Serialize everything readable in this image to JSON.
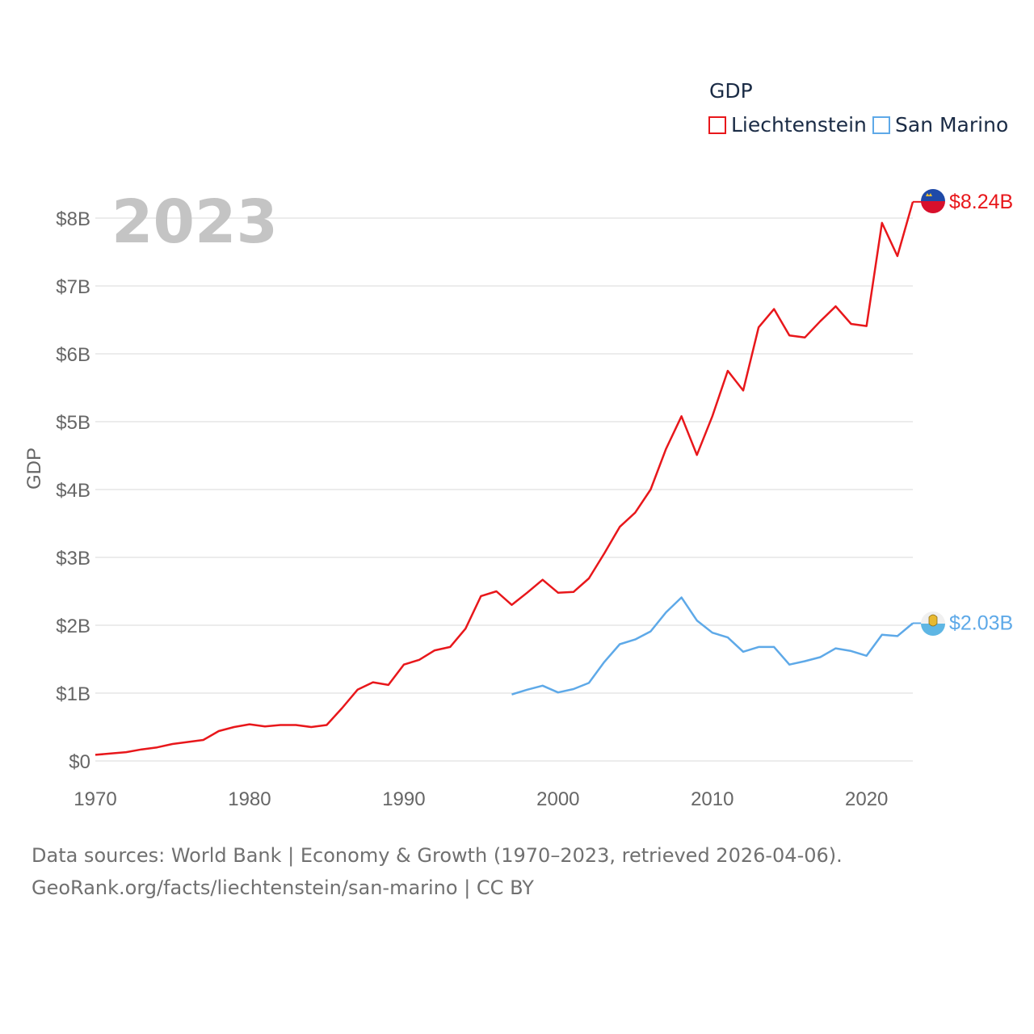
{
  "legend": {
    "title": "GDP",
    "items": [
      {
        "label": "Liechtenstein",
        "color": "#e8171b"
      },
      {
        "label": "San Marino",
        "color": "#5ea9e8"
      }
    ]
  },
  "footer": {
    "line1": "Data sources: World Bank | Economy & Growth (1970–2023, retrieved 2026-04-06).",
    "line2": "GeoRank.org/facts/liechtenstein/san-marino | CC BY"
  },
  "chart_data": {
    "type": "line",
    "title": "GDP",
    "year_label": "2023",
    "xlabel": "",
    "ylabel": "GDP",
    "xlim": [
      1970,
      2023
    ],
    "ylim": [
      0,
      8.5
    ],
    "x_ticks": [
      1970,
      1980,
      1990,
      2000,
      2010,
      2020
    ],
    "x_tick_labels": [
      "1970",
      "1980",
      "1990",
      "2000",
      "2010",
      "2020"
    ],
    "y_ticks": [
      0,
      1,
      2,
      3,
      4,
      5,
      6,
      7,
      8
    ],
    "y_tick_labels": [
      "$0",
      "$1B",
      "$2B",
      "$3B",
      "$4B",
      "$5B",
      "$6B",
      "$7B",
      "$8B"
    ],
    "grid": true,
    "legend_position": "top-right",
    "series": [
      {
        "name": "Liechtenstein",
        "color": "#e8171b",
        "end_label": "$8.24B",
        "x": [
          1970,
          1971,
          1972,
          1973,
          1974,
          1975,
          1976,
          1977,
          1978,
          1979,
          1980,
          1981,
          1982,
          1983,
          1984,
          1985,
          1986,
          1987,
          1988,
          1989,
          1990,
          1991,
          1992,
          1993,
          1994,
          1995,
          1996,
          1997,
          1998,
          1999,
          2000,
          2001,
          2002,
          2003,
          2004,
          2005,
          2006,
          2007,
          2008,
          2009,
          2010,
          2011,
          2012,
          2013,
          2014,
          2015,
          2016,
          2017,
          2018,
          2019,
          2020,
          2021,
          2022,
          2023
        ],
        "values": [
          0.09,
          0.11,
          0.13,
          0.17,
          0.2,
          0.25,
          0.28,
          0.31,
          0.44,
          0.5,
          0.54,
          0.51,
          0.53,
          0.53,
          0.5,
          0.53,
          0.78,
          1.05,
          1.16,
          1.12,
          1.42,
          1.49,
          1.63,
          1.68,
          1.95,
          2.43,
          2.5,
          2.3,
          2.48,
          2.67,
          2.48,
          2.49,
          2.69,
          3.06,
          3.45,
          3.66,
          4.0,
          4.6,
          5.08,
          4.51,
          5.08,
          5.75,
          5.46,
          6.39,
          6.66,
          6.27,
          6.24,
          6.48,
          6.7,
          6.44,
          6.41,
          7.93,
          7.44,
          8.24
        ]
      },
      {
        "name": "San Marino",
        "color": "#5ea9e8",
        "end_label": "$2.03B",
        "x": [
          1997,
          1998,
          1999,
          2000,
          2001,
          2002,
          2003,
          2004,
          2005,
          2006,
          2007,
          2008,
          2009,
          2010,
          2011,
          2012,
          2013,
          2014,
          2015,
          2016,
          2017,
          2018,
          2019,
          2020,
          2021,
          2022,
          2023
        ],
        "values": [
          0.98,
          1.05,
          1.11,
          1.01,
          1.06,
          1.15,
          1.46,
          1.72,
          1.79,
          1.91,
          2.19,
          2.41,
          2.07,
          1.89,
          1.82,
          1.61,
          1.68,
          1.68,
          1.42,
          1.47,
          1.53,
          1.66,
          1.62,
          1.55,
          1.86,
          1.84,
          2.03
        ]
      }
    ]
  }
}
